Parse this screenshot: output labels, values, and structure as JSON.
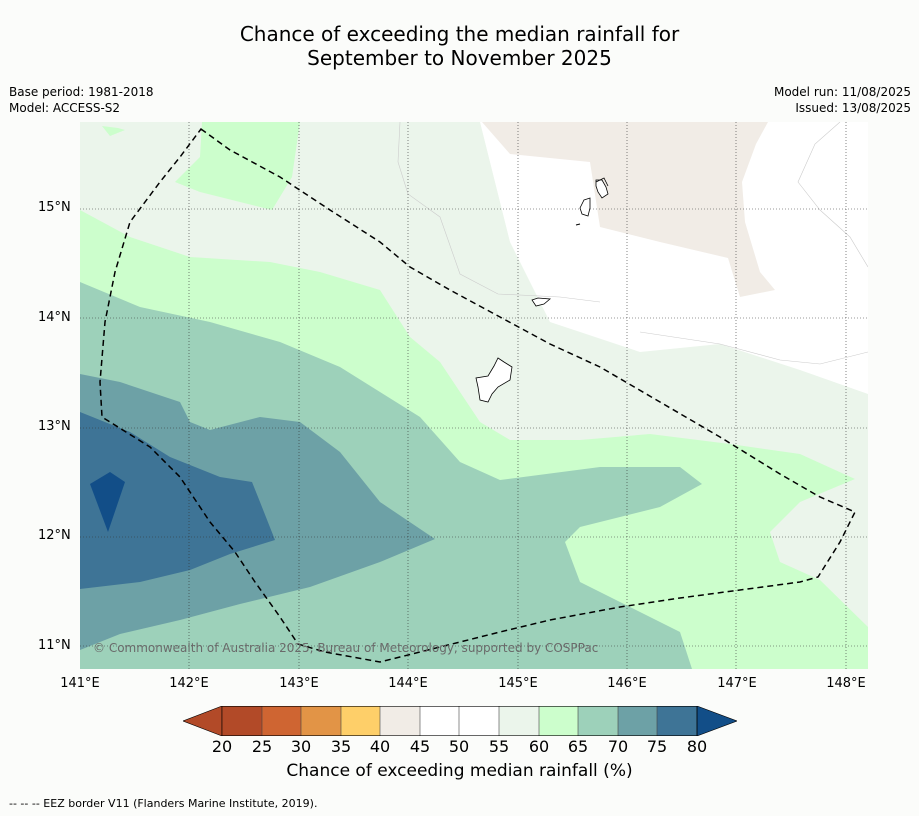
{
  "title_line1": "Chance of exceeding the median rainfall for",
  "title_line2": "September to November 2025",
  "meta_left": {
    "base_period": "Base period: 1981-2018",
    "model": "Model: ACCESS-S2"
  },
  "meta_right": {
    "model_run": "Model run: 11/08/2025",
    "issued": "Issued: 13/08/2025"
  },
  "map": {
    "lat_labels": [
      "15°N",
      "14°N",
      "13°N",
      "12°N",
      "11°N"
    ],
    "lon_labels": [
      "141°E",
      "142°E",
      "143°E",
      "144°E",
      "145°E",
      "146°E",
      "147°E",
      "148°E"
    ],
    "copyright": "© Commonwealth of Australia 2025, Bureau of Meteorology, supported by COSPPac",
    "colors": {
      "c20": "#b24a28",
      "c25": "#cf6532",
      "c30": "#e29446",
      "c35": "#fecf69",
      "c40": "#f1ece6",
      "c45": "#ffffff",
      "c50": "#ffffff",
      "c55": "#ebf5eb",
      "c60": "#ccfecc",
      "c65": "#9dd1ba",
      "c70": "#6da1a6",
      "c75": "#3e7496",
      "c80": "#124e88"
    }
  },
  "colorbar": {
    "ticks": [
      "20",
      "25",
      "30",
      "35",
      "40",
      "45",
      "50",
      "55",
      "60",
      "65",
      "70",
      "75",
      "80"
    ],
    "label": "Chance of exceeding median rainfall (%)"
  },
  "eez_legend": "--  --  -- EEZ border V11 (Flanders Marine Institute, 2019)."
}
